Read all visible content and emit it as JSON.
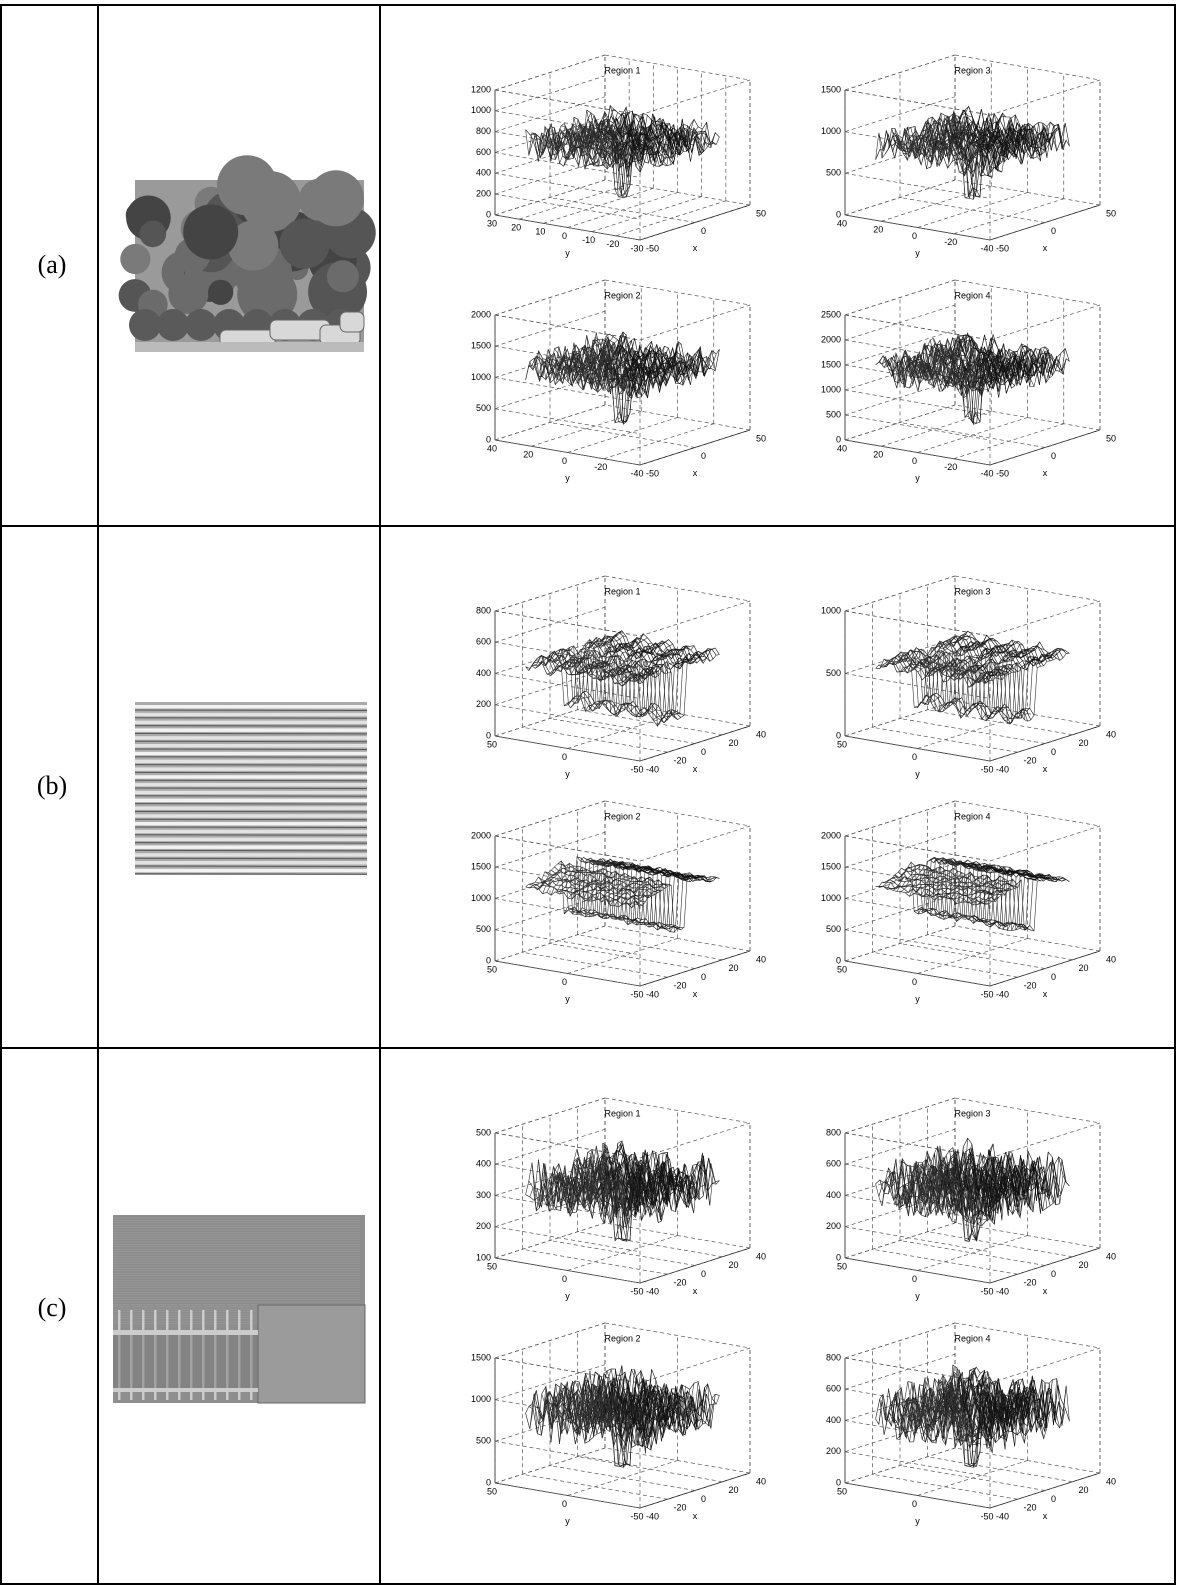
{
  "rows": [
    {
      "label": "(a)",
      "plots": [
        {
          "title": "Region 1",
          "zticks": [
            0,
            200,
            400,
            600,
            800,
            1000,
            1200
          ],
          "yticks": [
            30,
            20,
            10,
            0,
            -10,
            -20,
            -30
          ],
          "xticks": [
            -50,
            0,
            50
          ],
          "ylabel": "y",
          "xlabel": "x"
        },
        {
          "title": "Region 3",
          "zticks": [
            0,
            500,
            1000,
            1500
          ],
          "yticks": [
            40,
            20,
            0,
            -20,
            -40
          ],
          "xticks": [
            -50,
            0,
            50
          ],
          "ylabel": "y",
          "xlabel": "x"
        },
        {
          "title": "Region 2",
          "zticks": [
            0,
            500,
            1000,
            1500,
            2000
          ],
          "yticks": [
            40,
            20,
            0,
            -20,
            -40
          ],
          "xticks": [
            -50,
            0,
            50
          ],
          "ylabel": "y",
          "xlabel": "x"
        },
        {
          "title": "Region 4",
          "zticks": [
            0,
            500,
            1000,
            1500,
            2000,
            2500
          ],
          "yticks": [
            40,
            20,
            0,
            -20,
            -40
          ],
          "xticks": [
            -50,
            0,
            50
          ],
          "ylabel": "y",
          "xlabel": "x"
        }
      ]
    },
    {
      "label": "(b)",
      "plots": [
        {
          "title": "Region 1",
          "zticks": [
            0,
            200,
            400,
            600,
            800
          ],
          "yticks": [
            50,
            0,
            -50
          ],
          "xticks": [
            -40,
            -20,
            0,
            20,
            40
          ],
          "ylabel": "y",
          "xlabel": "x"
        },
        {
          "title": "Region 3",
          "zticks": [
            0,
            500,
            1000
          ],
          "yticks": [
            50,
            0,
            -50
          ],
          "xticks": [
            -40,
            -20,
            0,
            20,
            40
          ],
          "ylabel": "y",
          "xlabel": "x"
        },
        {
          "title": "Region 2",
          "zticks": [
            0,
            500,
            1000,
            1500,
            2000
          ],
          "yticks": [
            50,
            0,
            -50
          ],
          "xticks": [
            -40,
            -20,
            0,
            20,
            40
          ],
          "ylabel": "y",
          "xlabel": "x"
        },
        {
          "title": "Region 4",
          "zticks": [
            0,
            500,
            1000,
            1500,
            2000
          ],
          "yticks": [
            50,
            0,
            -50
          ],
          "xticks": [
            -40,
            -20,
            0,
            20,
            40
          ],
          "ylabel": "y",
          "xlabel": "x"
        }
      ]
    },
    {
      "label": "(c)",
      "plots": [
        {
          "title": "Region 1",
          "zticks": [
            100,
            200,
            300,
            400,
            500
          ],
          "yticks": [
            50,
            0,
            -50
          ],
          "xticks": [
            -40,
            -20,
            0,
            20,
            40
          ],
          "ylabel": "y",
          "xlabel": "x"
        },
        {
          "title": "Region 3",
          "zticks": [
            0,
            200,
            400,
            600,
            800
          ],
          "yticks": [
            50,
            0,
            -50
          ],
          "xticks": [
            -40,
            -20,
            0,
            20,
            40
          ],
          "ylabel": "y",
          "xlabel": "x"
        },
        {
          "title": "Region 2",
          "zticks": [
            0,
            500,
            1000,
            1500
          ],
          "yticks": [
            50,
            0,
            -50
          ],
          "xticks": [
            -40,
            -20,
            0,
            20,
            40
          ],
          "ylabel": "y",
          "xlabel": "x"
        },
        {
          "title": "Region 4",
          "zticks": [
            0,
            200,
            400,
            600,
            800
          ],
          "yticks": [
            50,
            0,
            -50
          ],
          "xticks": [
            -40,
            -20,
            0,
            20,
            40
          ],
          "ylabel": "y",
          "xlabel": "x"
        }
      ]
    }
  ]
}
